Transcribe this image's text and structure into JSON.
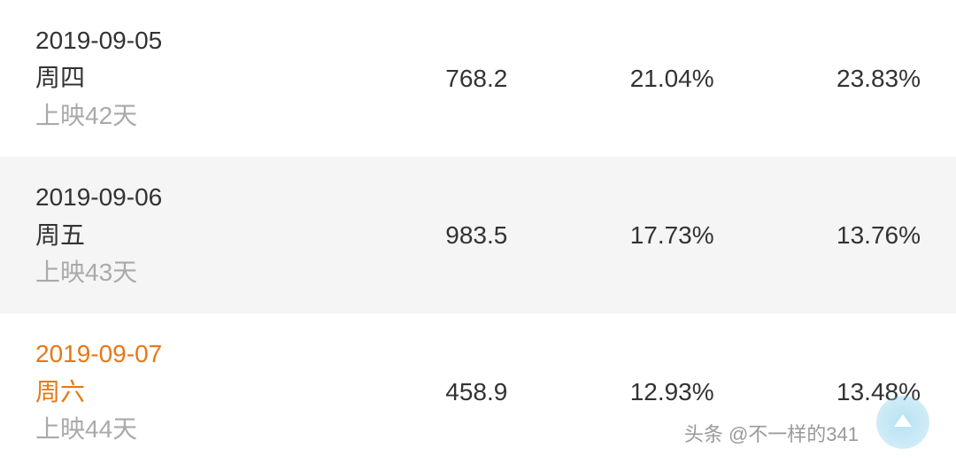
{
  "table": {
    "rows": [
      {
        "date": "2019-09-05",
        "weekday": "周四",
        "release": "上映42天",
        "value1": "768.2",
        "value2": "21.04%",
        "value3": "23.83%",
        "highlighted": false
      },
      {
        "date": "2019-09-06",
        "weekday": "周五",
        "release": "上映43天",
        "value1": "983.5",
        "value2": "17.73%",
        "value3": "13.76%",
        "highlighted": false
      },
      {
        "date": "2019-09-07",
        "weekday": "周六",
        "release": "上映44天",
        "value1": "458.9",
        "value2": "12.93%",
        "value3": "13.48%",
        "highlighted": true
      }
    ]
  },
  "watermark": {
    "text": "头条 @不一样的341"
  },
  "styling": {
    "row_background_even": "#f5f5f5",
    "row_background_odd": "#ffffff",
    "text_color_primary": "#333333",
    "text_color_secondary": "#aaaaaa",
    "text_color_highlight": "#e67817",
    "font_size_main": 28,
    "watermark_color": "#999999",
    "watermark_badge_color": "#87ceeb"
  }
}
